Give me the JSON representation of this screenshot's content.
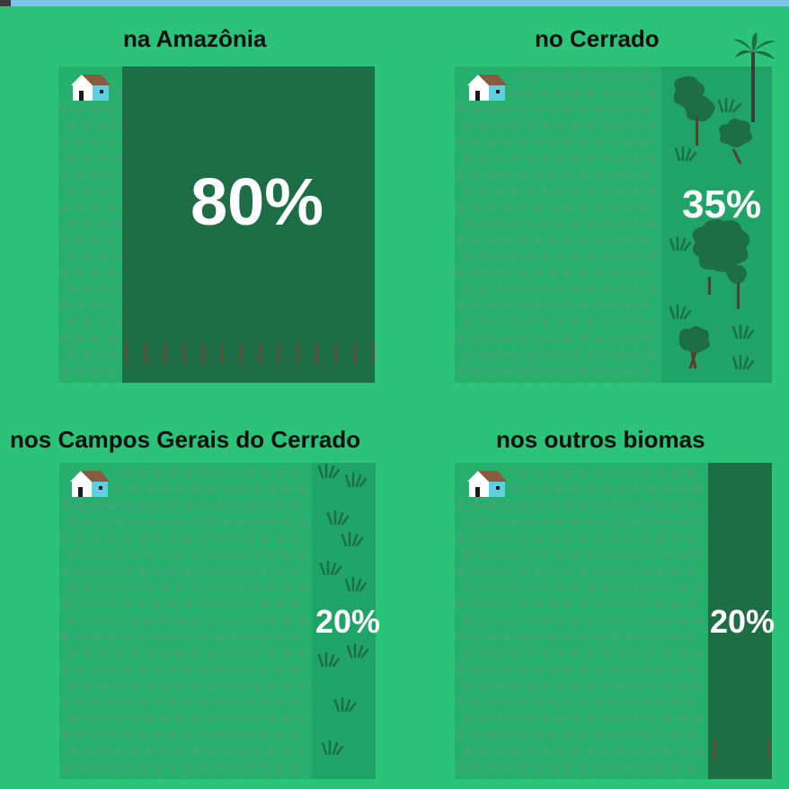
{
  "panels": [
    {
      "id": "amazonia",
      "title": "na Amazônia",
      "percent": "80%",
      "reserve_fraction": 0.8,
      "reserve_type": "forest"
    },
    {
      "id": "cerrado",
      "title": "no Cerrado",
      "percent": "35%",
      "reserve_fraction": 0.35,
      "reserve_type": "savanna"
    },
    {
      "id": "campos-gerais",
      "title": "nos Campos Gerais do Cerrado",
      "percent": "20%",
      "reserve_fraction": 0.2,
      "reserve_type": "grassland"
    },
    {
      "id": "outros-biomas",
      "title": "nos outros biomas",
      "percent": "20%",
      "reserve_fraction": 0.2,
      "reserve_type": "forest"
    }
  ],
  "icons": {
    "house": "house-icon",
    "grass": "grass-tuft-icon",
    "tree": "tree-icon",
    "palm": "palm-tree-icon"
  },
  "colors": {
    "background": "#2bc378",
    "field": "#27b06d",
    "reserve_light": "#1fa366",
    "forest": "#1e6e45",
    "text": "#0f0f0f",
    "percent": "#ffffff"
  }
}
